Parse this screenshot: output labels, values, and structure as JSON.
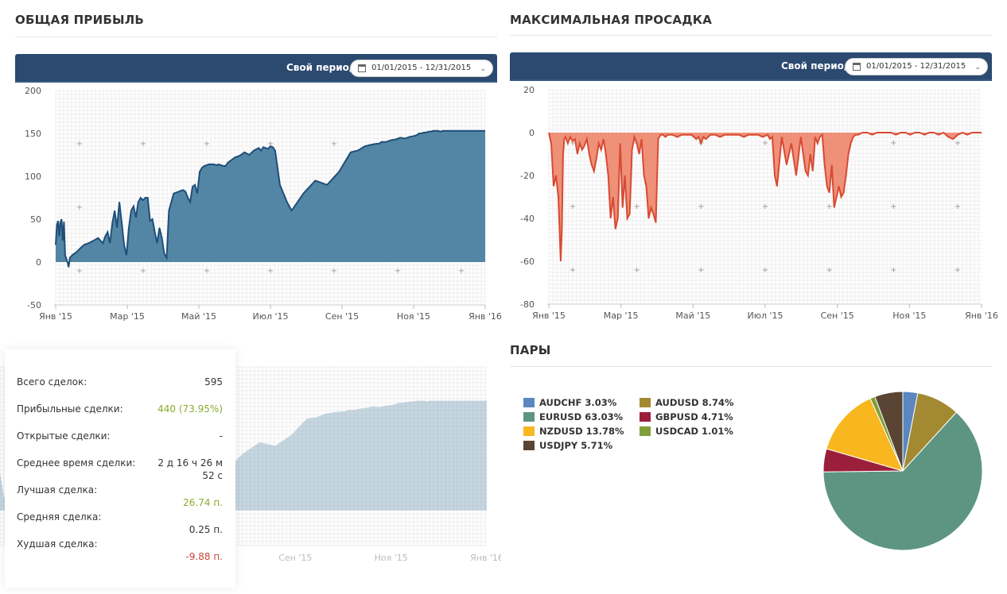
{
  "profit": {
    "title": "ОБЩАЯ ПРИБЫЛЬ",
    "period_label": "Свой период:",
    "period_value": "01/01/2015 - 12/31/2015"
  },
  "drawdown": {
    "title": "МАКСИМАЛЬНАЯ ПРОСАДКА",
    "period_label": "Свой период:",
    "period_value": "01/01/2015 - 12/31/2015"
  },
  "pairs": {
    "title": "ПАРЫ"
  },
  "stats": {
    "total_label": "Всего сделок:",
    "total_value": "595",
    "profitable_label": "Прибыльные сделки:",
    "profitable_value": "440 (73.95%)",
    "open_label": "Открытые сделки:",
    "open_value": "-",
    "avg_time_label": "Среднее время сделки:",
    "avg_time_value_1": "2 д 16 ч 26 м",
    "avg_time_value_2": "52 с",
    "best_label": "Лучшая сделка:",
    "best_value": "26.74 п.",
    "avg_label": "Средняя сделка:",
    "avg_value": "0.25 п.",
    "worst_label": "Худшая сделка:",
    "worst_value": "-9.88 п."
  },
  "colors": {
    "header_bar": "#2c4a70",
    "profit_fill": "#4a7fa0",
    "profit_line": "#1f4e79",
    "drawdown_fill": "#ee8a72",
    "drawdown_line": "#d84a32",
    "positive": "#8aab2c",
    "negative": "#c8473a"
  },
  "chart_data": [
    {
      "type": "area",
      "name": "profit",
      "x_tick_labels": [
        "Янв '15",
        "Мар '15",
        "Май '15",
        "Июл '15",
        "Сен '15",
        "Ноя '15",
        "Янв '16"
      ],
      "ylim": [
        -50,
        200
      ],
      "y_ticks": [
        -50,
        0,
        50,
        100,
        150,
        200
      ],
      "grid": true,
      "x": [
        0,
        1,
        2,
        3,
        4,
        5,
        6,
        7,
        8,
        10,
        11,
        12,
        14,
        16,
        18,
        20,
        24,
        28,
        32,
        36,
        40,
        42,
        44,
        46,
        48,
        50,
        52,
        54,
        56,
        58,
        60,
        62,
        64,
        66,
        68,
        70,
        72,
        74,
        76,
        78,
        80,
        82,
        84,
        86,
        88,
        90,
        92,
        94,
        96,
        98,
        100,
        104,
        108,
        110,
        112,
        114,
        116,
        118,
        120,
        122,
        124,
        126,
        128,
        130,
        132,
        134,
        136,
        138,
        140,
        142,
        144,
        146,
        148,
        150,
        152,
        156,
        160,
        164,
        168,
        172,
        174,
        176,
        178,
        180,
        182,
        184,
        186,
        190,
        196,
        200,
        210,
        220,
        230,
        240,
        250,
        256,
        262,
        268,
        272,
        274,
        276,
        280,
        284,
        288,
        292,
        296,
        300,
        304,
        306,
        308,
        310,
        312,
        314,
        316,
        318,
        320,
        322,
        324,
        326,
        328,
        330,
        334,
        338,
        342,
        346,
        350,
        356,
        360,
        364
      ],
      "values": [
        20,
        43,
        48,
        30,
        46,
        50,
        25,
        47,
        8,
        0,
        -6,
        5,
        8,
        10,
        12,
        15,
        20,
        22,
        25,
        28,
        22,
        30,
        35,
        22,
        45,
        60,
        40,
        70,
        45,
        20,
        8,
        40,
        60,
        65,
        52,
        70,
        75,
        72,
        75,
        75,
        48,
        50,
        35,
        22,
        40,
        28,
        10,
        5,
        60,
        70,
        80,
        82,
        84,
        82,
        75,
        70,
        88,
        90,
        80,
        105,
        110,
        112,
        113,
        114,
        114,
        114,
        113,
        114,
        113,
        112,
        112,
        116,
        118,
        120,
        122,
        124,
        128,
        125,
        130,
        133,
        130,
        134,
        133,
        132,
        135,
        134,
        130,
        90,
        70,
        60,
        80,
        95,
        90,
        105,
        128,
        130,
        135,
        137,
        138,
        138,
        140,
        140,
        142,
        143,
        145,
        144,
        146,
        147,
        148,
        150,
        150,
        151,
        151,
        152,
        152,
        153,
        153,
        153,
        152,
        153,
        153,
        153,
        153,
        153,
        153,
        153,
        153,
        153,
        153
      ]
    },
    {
      "type": "area",
      "name": "drawdown",
      "x_tick_labels": [
        "Янв '15",
        "Мар '15",
        "Май '15",
        "Июл '15",
        "Сен '15",
        "Ноя '15",
        "Янв '16"
      ],
      "ylim": [
        -80,
        20
      ],
      "y_ticks": [
        -80,
        -60,
        -40,
        -20,
        0,
        20
      ],
      "grid": true,
      "x": [
        0,
        2,
        4,
        6,
        8,
        10,
        11,
        12,
        13,
        14,
        16,
        18,
        20,
        22,
        24,
        26,
        28,
        30,
        32,
        34,
        36,
        38,
        40,
        42,
        44,
        46,
        48,
        50,
        52,
        54,
        56,
        58,
        60,
        62,
        64,
        66,
        68,
        70,
        72,
        74,
        76,
        78,
        80,
        82,
        84,
        86,
        88,
        90,
        92,
        94,
        96,
        98,
        100,
        104,
        108,
        112,
        116,
        120,
        124,
        126,
        128,
        130,
        132,
        136,
        140,
        144,
        148,
        152,
        156,
        160,
        164,
        168,
        172,
        176,
        180,
        184,
        186,
        188,
        190,
        192,
        196,
        200,
        204,
        208,
        212,
        216,
        218,
        220,
        222,
        224,
        226,
        228,
        230,
        232,
        234,
        236,
        238,
        240,
        242,
        244,
        246,
        248,
        250,
        252,
        254,
        256,
        258,
        260,
        264,
        268,
        272,
        276,
        280,
        284,
        288,
        292,
        296,
        300,
        304,
        308,
        312,
        316,
        320,
        324,
        328,
        332,
        336,
        340,
        344,
        348,
        352,
        356,
        360,
        364
      ],
      "values": [
        0,
        -5,
        -25,
        -20,
        -30,
        -60,
        -45,
        -10,
        -3,
        -2,
        -5,
        -2,
        -4,
        -3,
        -10,
        -5,
        -8,
        -6,
        -3,
        -10,
        -15,
        -18,
        -12,
        -5,
        -8,
        -3,
        -10,
        -20,
        -40,
        -30,
        -45,
        -40,
        -5,
        -35,
        -20,
        -40,
        -38,
        -8,
        -2,
        -5,
        -10,
        -3,
        -20,
        -25,
        -40,
        -35,
        -38,
        -42,
        -3,
        -1,
        -1,
        -2,
        -1,
        -1,
        -2,
        -1,
        -1,
        -1,
        -3,
        -2,
        -5,
        -2,
        -3,
        -1,
        -1,
        -2,
        -1,
        -1,
        -1,
        -1,
        -2,
        -1,
        -1,
        -1,
        -2,
        -1,
        -3,
        -2,
        -20,
        -25,
        -2,
        -15,
        -5,
        -20,
        -2,
        -18,
        -20,
        -10,
        -18,
        -2,
        -5,
        -2,
        -1,
        -15,
        -25,
        -28,
        -15,
        -35,
        -30,
        -25,
        -30,
        -28,
        -20,
        -10,
        -5,
        -2,
        -1,
        -1,
        0,
        0,
        -1,
        0,
        0,
        0,
        0,
        -1,
        0,
        0,
        -1,
        0,
        0,
        -1,
        0,
        0,
        -1,
        0,
        -2,
        -3,
        -1,
        0,
        -1,
        0,
        0,
        0
      ]
    },
    {
      "type": "pie",
      "name": "pairs",
      "series": [
        {
          "name": "AUDCHF",
          "value": 3.03,
          "label": "AUDCHF 3.03%",
          "color": "#5b87c0"
        },
        {
          "name": "AUDUSD",
          "value": 8.74,
          "label": "AUDUSD 8.74%",
          "color": "#a38a32"
        },
        {
          "name": "EURUSD",
          "value": 63.03,
          "label": "EURUSD 63.03%",
          "color": "#5e9582"
        },
        {
          "name": "GBPUSD",
          "value": 4.71,
          "label": "GBPUSD 4.71%",
          "color": "#9b1f3a"
        },
        {
          "name": "NZDUSD",
          "value": 13.78,
          "label": "NZDUSD 13.78%",
          "color": "#f8b71f"
        },
        {
          "name": "USDCAD",
          "value": 1.01,
          "label": "USDCAD 1.01%",
          "color": "#7f9f3a"
        },
        {
          "name": "USDJPY",
          "value": 5.71,
          "label": "USDJPY 5.71%",
          "color": "#5a4433"
        }
      ]
    }
  ]
}
